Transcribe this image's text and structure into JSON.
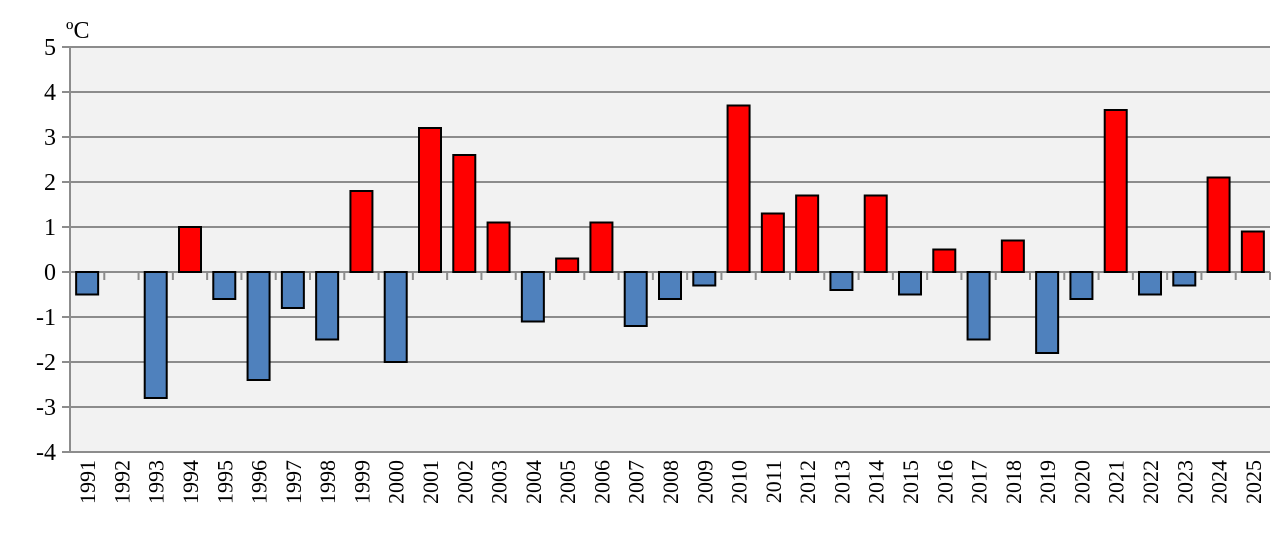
{
  "chart_data": {
    "type": "bar",
    "title": "",
    "ylabel": "ºC",
    "xlabel": "",
    "ylim": [
      -4,
      5
    ],
    "yticks": [
      5,
      4,
      3,
      2,
      1,
      0,
      -1,
      -2,
      -3,
      -4
    ],
    "grid": true,
    "categories": [
      "1991",
      "1992",
      "1993",
      "1994",
      "1995",
      "1996",
      "1997",
      "1998",
      "1999",
      "2000",
      "2001",
      "2002",
      "2003",
      "2004",
      "2005",
      "2006",
      "2007",
      "2008",
      "2009",
      "2010",
      "2011",
      "2012",
      "2013",
      "2014",
      "2015",
      "2016",
      "2017",
      "2018",
      "2019",
      "2020",
      "2021",
      "2022",
      "2023",
      "2024",
      "2025"
    ],
    "values": [
      -0.5,
      0,
      -2.8,
      1.0,
      -0.6,
      -2.4,
      -0.8,
      -1.5,
      1.8,
      -2.0,
      3.2,
      2.6,
      1.1,
      -1.1,
      0.3,
      1.1,
      -1.2,
      -0.6,
      -0.3,
      3.7,
      1.3,
      1.7,
      -0.4,
      1.7,
      -0.5,
      0.5,
      -1.5,
      0.7,
      -1.8,
      -0.6,
      3.6,
      -0.5,
      -0.3,
      2.1,
      0.9
    ],
    "colors": {
      "positive": "#ff0000",
      "negative": "#4f81bd",
      "plot_bg": "#f2f2f2",
      "grid": "#8c8c8c"
    }
  }
}
